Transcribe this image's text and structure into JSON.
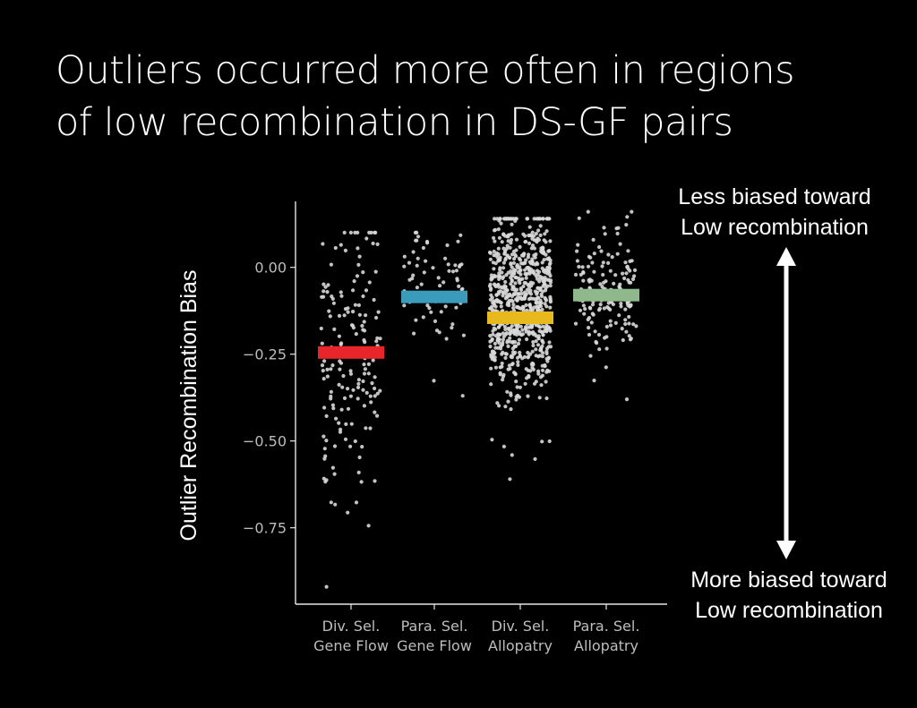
{
  "title_lines": [
    "Outliers occurred more often in regions",
    "of low recombination in DS-GF pairs"
  ],
  "annotations": {
    "top_lines": [
      "Less biased toward",
      "Low recombination"
    ],
    "bottom_lines": [
      "More biased toward",
      "Low recombination"
    ]
  },
  "colors": {
    "background": "#000000",
    "points": "#d8d8d8",
    "axis": "#e6e6e6",
    "tick_text": "#bdbdbd"
  },
  "chart_data": {
    "type": "scatter",
    "subtype": "jittered strip plot with mean bars",
    "ylabel": "Outlier Recombination Bias",
    "xlabel": "",
    "ylim": [
      -0.97,
      0.19
    ],
    "yticks": [
      0.0,
      -0.25,
      -0.5,
      -0.75
    ],
    "ytick_labels": [
      "0.00",
      "−0.25",
      "−0.50",
      "−0.75"
    ],
    "grid": false,
    "legend": "none",
    "categories": [
      {
        "label_lines": [
          "Div. Sel.",
          "Gene Flow"
        ],
        "mean": -0.245,
        "color": "#e8252b",
        "n_points": 170,
        "min": -0.92,
        "max": 0.1,
        "center": -0.24,
        "spread": 0.2
      },
      {
        "label_lines": [
          "Para. Sel.",
          "Gene Flow"
        ],
        "mean": -0.085,
        "color": "#3a9bba",
        "n_points": 70,
        "min": -0.37,
        "max": 0.1,
        "center": -0.05,
        "spread": 0.1
      },
      {
        "label_lines": [
          "Div. Sel.",
          "Allopatry"
        ],
        "mean": -0.145,
        "color": "#e8b81f",
        "n_points": 800,
        "min": -0.61,
        "max": 0.14,
        "center": -0.1,
        "spread": 0.13
      },
      {
        "label_lines": [
          "Para. Sel.",
          "Allopatry"
        ],
        "mean": -0.08,
        "color": "#8fb98c",
        "n_points": 170,
        "min": -0.38,
        "max": 0.16,
        "center": -0.07,
        "spread": 0.09
      }
    ]
  }
}
